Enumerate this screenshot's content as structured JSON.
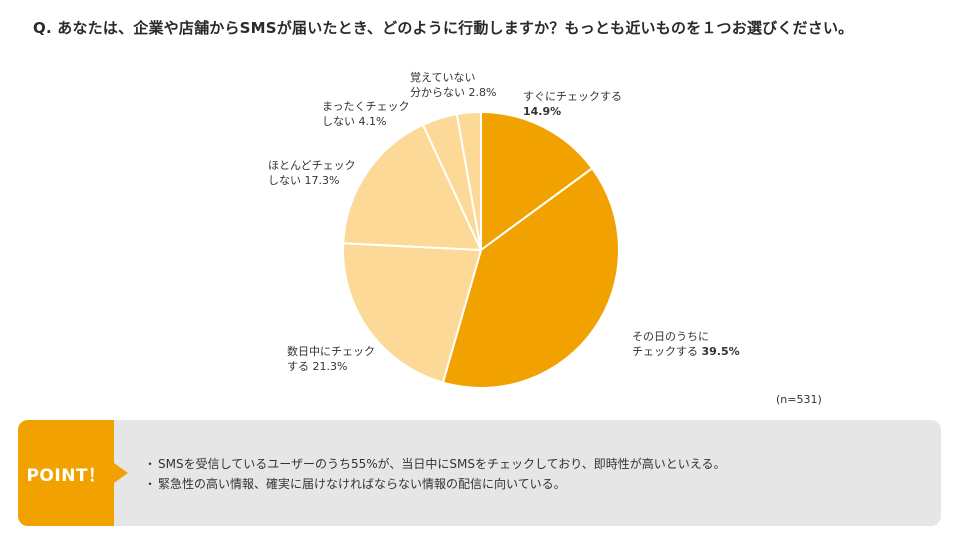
{
  "question": "Q. あなたは、企業や店舗からSMSが届いたとき、どのように行動しますか？もっとも近いものを１つお選びください。",
  "chart_data": {
    "type": "pie",
    "title": "Q. あなたは、企業や店舗からSMSが届いたとき、どのように行動しますか？もっとも近いものを１つお選びください。",
    "unit": "%",
    "start": "12 o'clock, clockwise",
    "slices": [
      {
        "label_lines": [
          "すぐにチェックする"
        ],
        "value": 14.9,
        "value_text": "14.9%",
        "color": "#f2a200"
      },
      {
        "label_lines": [
          "その日のうちに",
          "チェックする"
        ],
        "value": 39.5,
        "value_text": "39.5%",
        "color": "#f2a200"
      },
      {
        "label_lines": [
          "数日中にチェック",
          "する"
        ],
        "value": 21.3,
        "value_text": "21.3%",
        "color": "#fcd996"
      },
      {
        "label_lines": [
          "ほとんどチェック",
          "しない"
        ],
        "value": 17.3,
        "value_text": "17.3%",
        "color": "#fcd996"
      },
      {
        "label_lines": [
          "まったくチェック",
          "しない"
        ],
        "value": 4.1,
        "value_text": "4.1%",
        "color": "#fcd996"
      },
      {
        "label_lines": [
          "覚えていない",
          "分からない"
        ],
        "value": 2.8,
        "value_text": "2.8%",
        "color": "#fcd996"
      }
    ],
    "sample_size": "(n=531)"
  },
  "point": {
    "badge": "POINT！",
    "bullet": "・",
    "items": [
      "SMSを受信しているユーザーのうち55%が、当日中にSMSをチェックしており、即時性が高いといえる。",
      "緊急性の高い情報、確実に届けなければならない情報の配信に向いている。"
    ]
  },
  "colors": {
    "accent": "#f2a200",
    "light": "#fcd996",
    "panel": "#e6e6e6"
  }
}
